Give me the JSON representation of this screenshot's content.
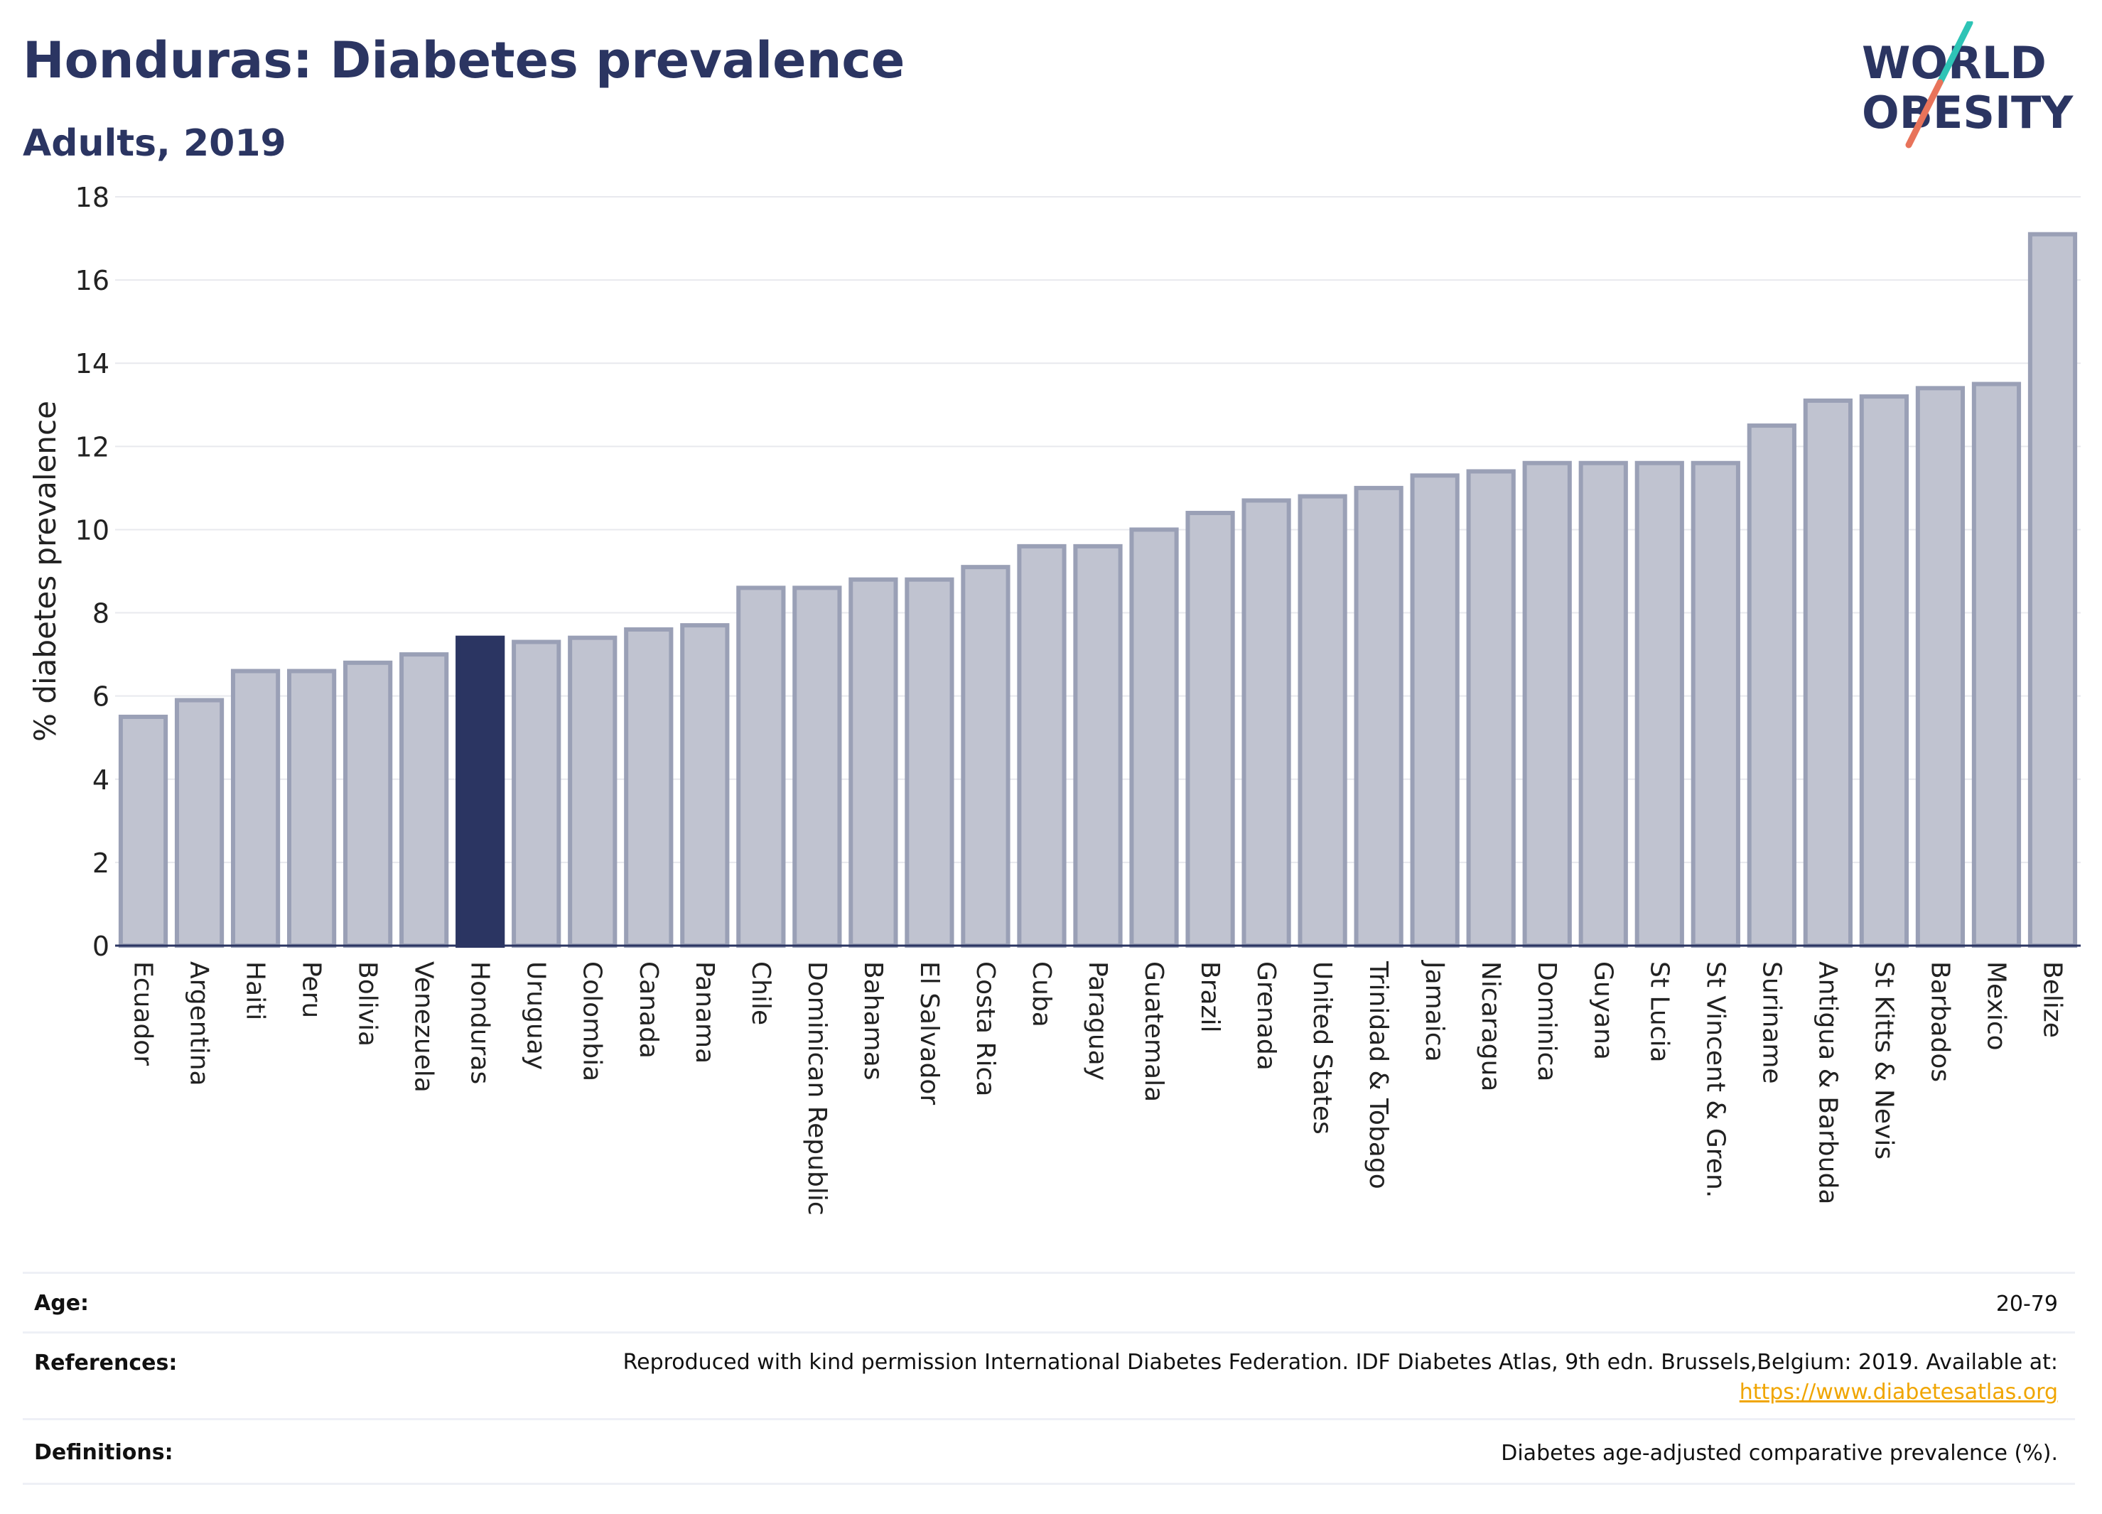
{
  "header": {
    "title": "Honduras: Diabetes prevalence",
    "subtitle": "Adults, 2019"
  },
  "logo": {
    "line1": "WORLD",
    "line2": "OBESITY",
    "slash_colors": [
      "#2ec4b6",
      "#e8735a"
    ]
  },
  "chart_data": {
    "type": "bar",
    "title": "Honduras: Diabetes prevalence",
    "subtitle": "Adults, 2019",
    "xlabel": "",
    "ylabel": "% diabetes prevalence",
    "ylim": [
      0,
      18
    ],
    "yticks": [
      0,
      2,
      4,
      6,
      8,
      10,
      12,
      14,
      16,
      18
    ],
    "grid": true,
    "highlight": "Honduras",
    "colors": {
      "default": "#c0c3d0",
      "default_border": "#9aa0b6",
      "highlight": "#2b3562"
    },
    "categories": [
      "Ecuador",
      "Argentina",
      "Haiti",
      "Peru",
      "Bolivia",
      "Venezuela",
      "Honduras",
      "Uruguay",
      "Colombia",
      "Canada",
      "Panama",
      "Chile",
      "Dominican Republic",
      "Bahamas",
      "El Salvador",
      "Costa Rica",
      "Cuba",
      "Paraguay",
      "Guatemala",
      "Brazil",
      "Grenada",
      "United States",
      "Trinidad & Tobago",
      "Jamaica",
      "Nicaragua",
      "Dominica",
      "Guyana",
      "St Lucia",
      "St Vincent & Gren.",
      "Suriname",
      "Antigua & Barbuda",
      "St Kitts & Nevis",
      "Barbados",
      "Mexico",
      "Belize"
    ],
    "values": [
      5.5,
      5.9,
      6.6,
      6.6,
      6.8,
      7.0,
      7.4,
      7.3,
      7.4,
      7.6,
      7.7,
      8.6,
      8.6,
      8.8,
      8.8,
      9.1,
      9.6,
      9.6,
      10.0,
      10.4,
      10.7,
      10.8,
      11.0,
      11.3,
      11.4,
      11.6,
      11.6,
      11.6,
      11.6,
      12.5,
      13.1,
      13.2,
      13.4,
      13.5,
      17.1
    ]
  },
  "meta": {
    "age": {
      "label": "Age:",
      "value": "20-79"
    },
    "references": {
      "label": "References:",
      "value": "Reproduced with kind permission International Diabetes Federation. IDF Diabetes Atlas, 9th edn. Brussels,Belgium: 2019. Available at:",
      "link": "https://www.diabetesatlas.org"
    },
    "definitions": {
      "label": "Definitions:",
      "value": "Diabetes age-adjusted comparative prevalence (%)."
    }
  }
}
